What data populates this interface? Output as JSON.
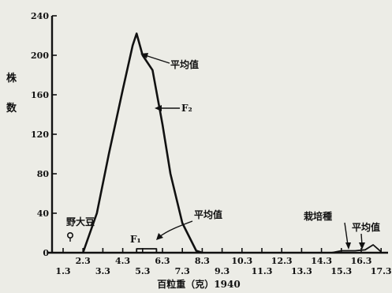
{
  "chart_data": {
    "type": "line",
    "ylabel_chars": [
      "株",
      "数"
    ],
    "xlabel": "百粒重（克）1940",
    "ylim": [
      0,
      240
    ],
    "y_ticks": [
      "0",
      "40",
      "80",
      "120",
      "160",
      "200",
      "240"
    ],
    "x_tick_values": [
      1.3,
      2.3,
      3.3,
      4.3,
      5.3,
      6.3,
      7.3,
      8.3,
      9.3,
      10.3,
      11.3,
      12.3,
      13.3,
      14.3,
      15.3,
      16.3,
      17.3
    ],
    "x_tick_labels": [
      "1.3",
      "2.3",
      "3.3",
      "4.3",
      "5.3",
      "6.3",
      "7.3",
      "8.3",
      "9.3",
      "10.3",
      "11.3",
      "12.3",
      "13.3",
      "14.3",
      "15.3",
      "16.3",
      "17.3"
    ],
    "series": [
      {
        "name": "F₂",
        "points": [
          [
            2.3,
            0
          ],
          [
            3.0,
            40
          ],
          [
            3.6,
            100
          ],
          [
            4.3,
            165
          ],
          [
            4.8,
            210
          ],
          [
            5.0,
            222
          ],
          [
            5.3,
            200
          ],
          [
            5.8,
            185
          ],
          [
            6.3,
            130
          ],
          [
            6.7,
            80
          ],
          [
            7.3,
            30
          ],
          [
            8.0,
            2
          ],
          [
            8.3,
            0
          ]
        ]
      },
      {
        "name": "F₁",
        "points": [
          [
            5.0,
            0
          ],
          [
            5.0,
            4
          ],
          [
            6.0,
            4
          ],
          [
            6.0,
            0
          ]
        ]
      },
      {
        "name": "栽培種",
        "points": [
          [
            14.8,
            0
          ],
          [
            15.3,
            2
          ],
          [
            16.0,
            2
          ],
          [
            16.5,
            3
          ],
          [
            16.9,
            8
          ],
          [
            17.3,
            1
          ]
        ]
      }
    ],
    "annotations": {
      "wild_soybean": "野大豆",
      "mean_value_f2": "平均值",
      "f2_label": "F₂",
      "mean_value_lower": "平均值",
      "f1_label": "F₁",
      "cultivated": "栽培種",
      "mean_value_cultivated": "平均值"
    }
  }
}
